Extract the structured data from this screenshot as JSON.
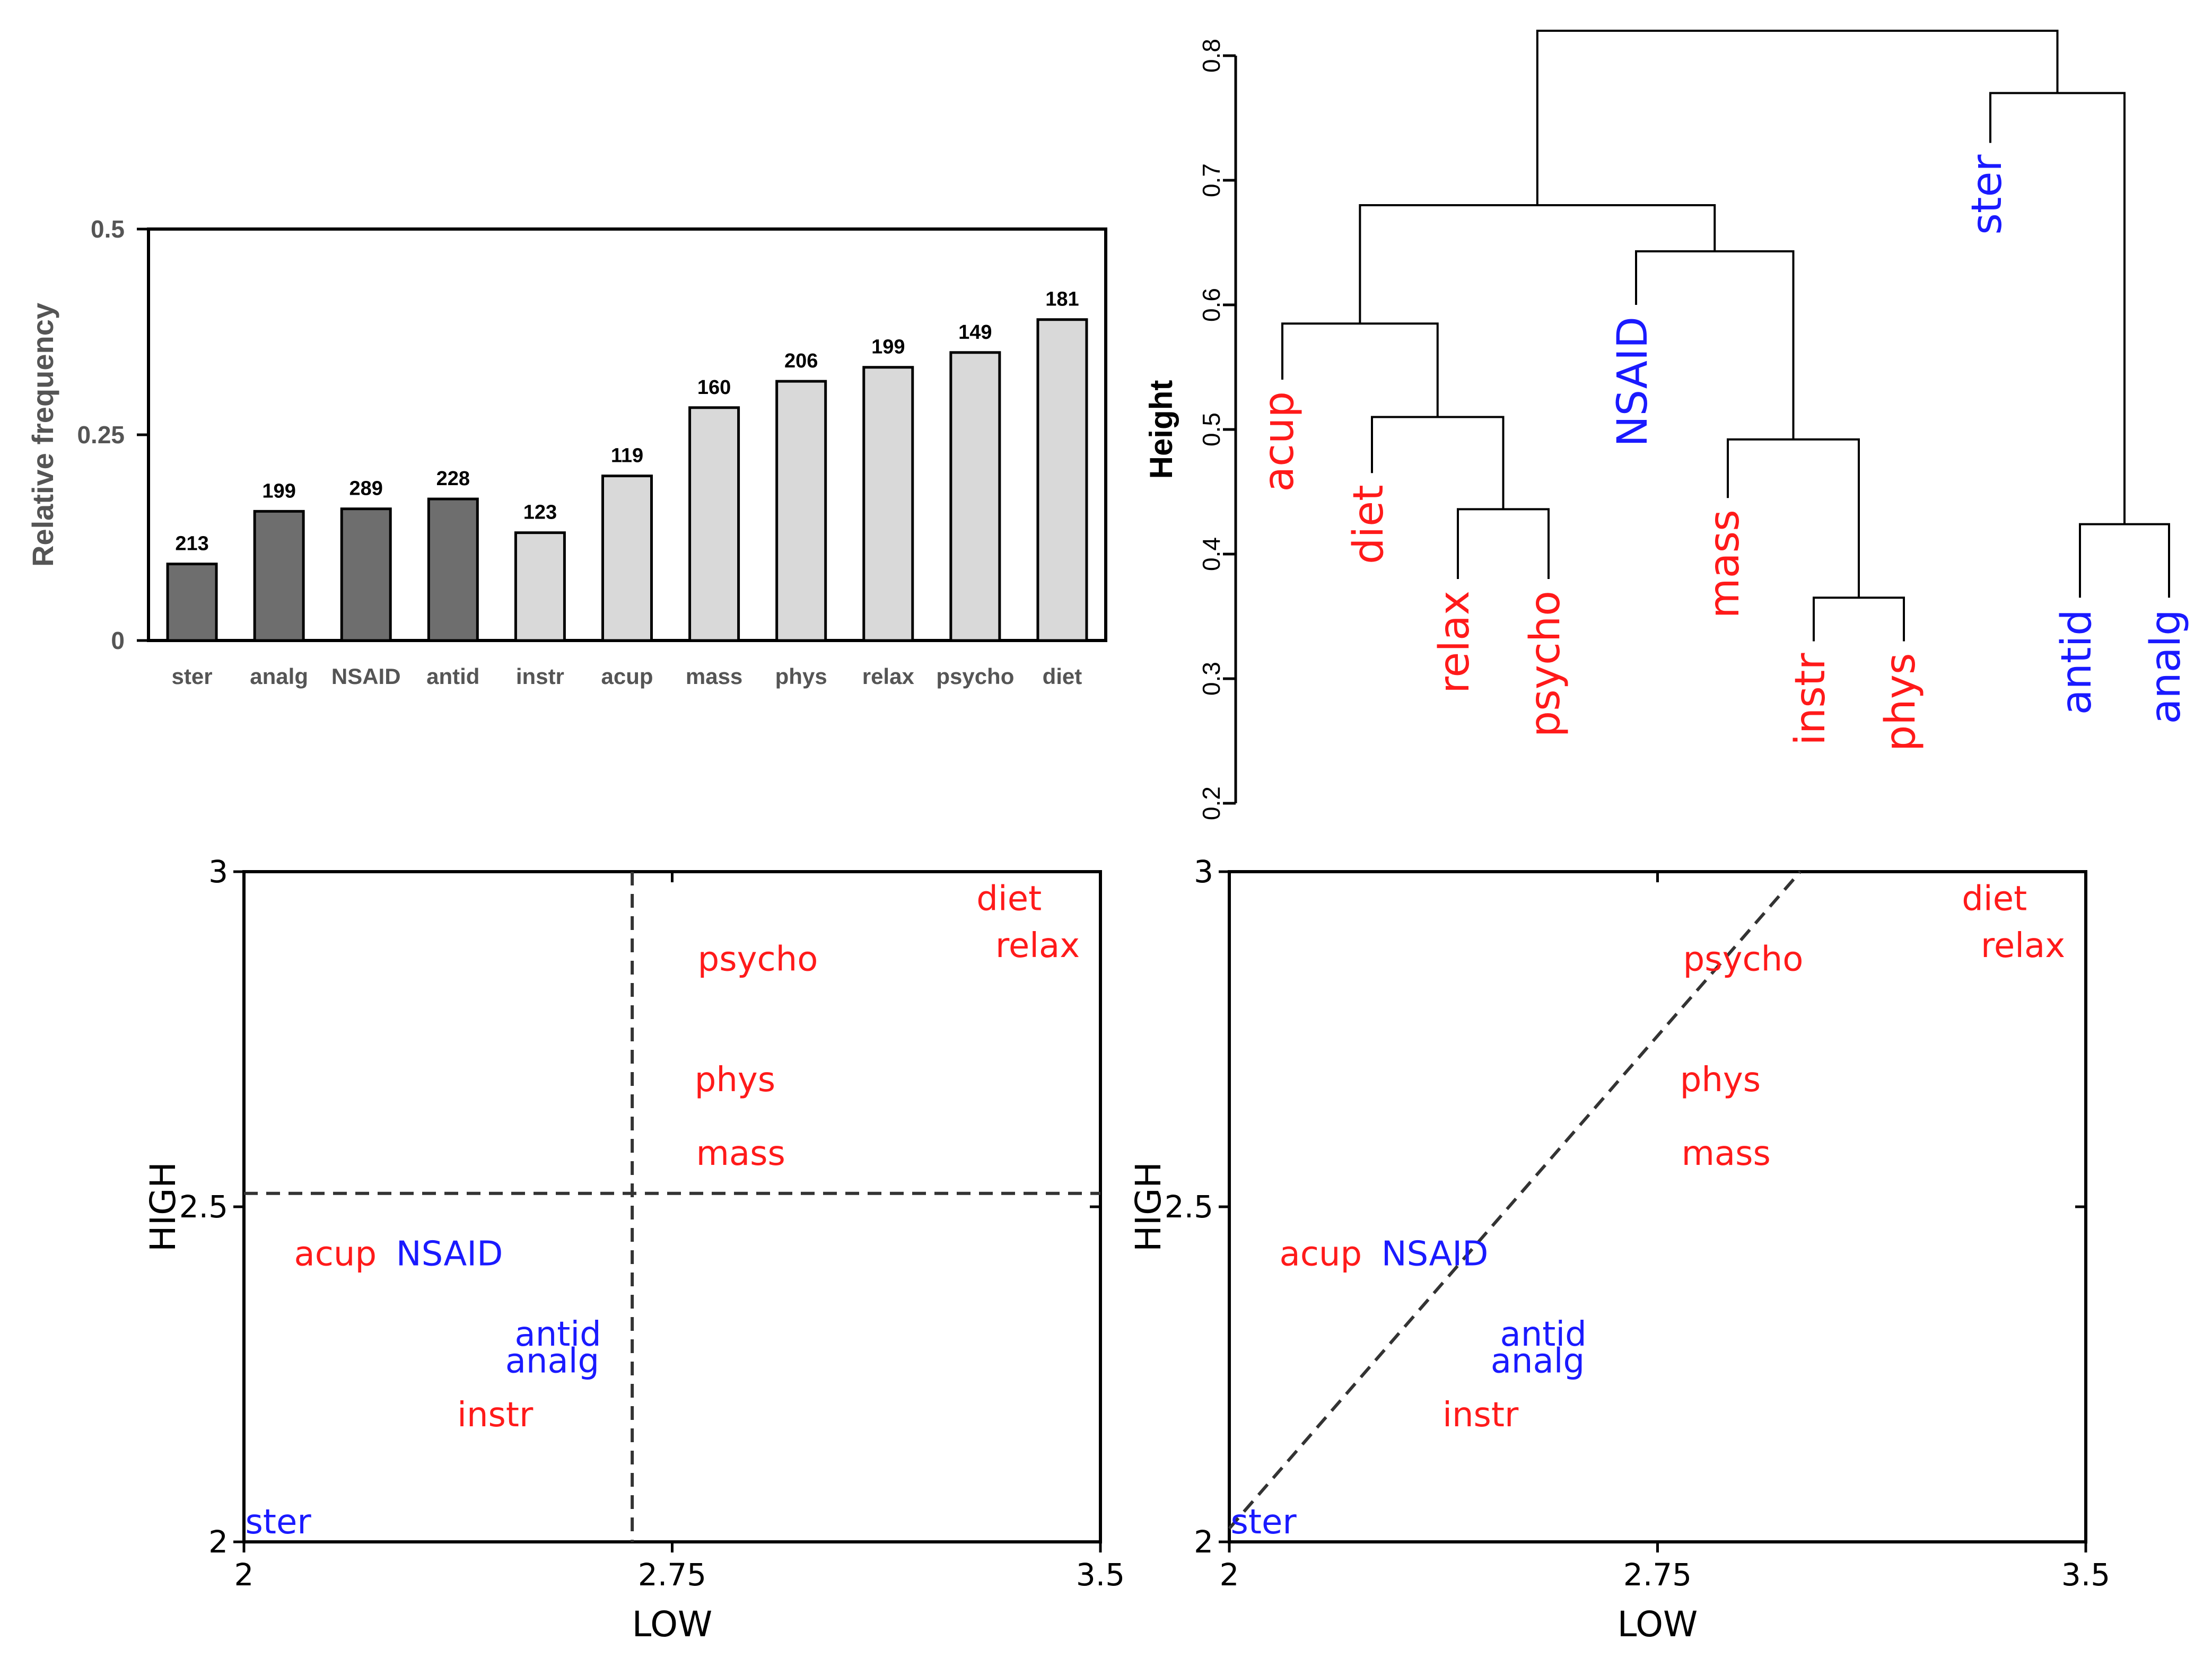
{
  "colors": {
    "dark_bar": "#6e6e6e",
    "light_bar": "#d9d9d9",
    "bar_edge": "#000000",
    "red": "#ff1a1a",
    "blue": "#1a1aff",
    "axis_text_gray": "#555555",
    "black": "#000000"
  },
  "chart_data": [
    {
      "type": "bar",
      "ylabel": "Relative frequency",
      "ylim": [
        0,
        0.5
      ],
      "yticks": [
        "0",
        "0.25",
        "0.5"
      ],
      "categories": [
        "ster",
        "analg",
        "NSAID",
        "antid",
        "instr",
        "acup",
        "mass",
        "phys",
        "relax",
        "psycho",
        "diet"
      ],
      "values": [
        0.093,
        0.157,
        0.16,
        0.172,
        0.131,
        0.2,
        0.283,
        0.315,
        0.332,
        0.35,
        0.39
      ],
      "data_labels": [
        "213",
        "199",
        "289",
        "228",
        "123",
        "119",
        "160",
        "206",
        "199",
        "149",
        "181"
      ],
      "groups": [
        "dark",
        "dark",
        "dark",
        "dark",
        "light",
        "light",
        "light",
        "light",
        "light",
        "light",
        "light"
      ]
    },
    {
      "type": "dendrogram",
      "ylabel": "Height",
      "ylim": [
        0.2,
        0.8
      ],
      "yticks": [
        "0.2",
        "0.3",
        "0.4",
        "0.5",
        "0.6",
        "0.7",
        "0.8"
      ],
      "leaves": [
        {
          "label": "acup",
          "group": "red",
          "height": 0.54
        },
        {
          "label": "diet",
          "group": "red",
          "height": 0.465
        },
        {
          "label": "relax",
          "group": "red",
          "height": 0.38
        },
        {
          "label": "psycho",
          "group": "red",
          "height": 0.38
        },
        {
          "label": "NSAID",
          "group": "blue",
          "height": 0.6
        },
        {
          "label": "mass",
          "group": "red",
          "height": 0.445
        },
        {
          "label": "instr",
          "group": "red",
          "height": 0.33
        },
        {
          "label": "phys",
          "group": "red",
          "height": 0.33
        },
        {
          "label": "ster",
          "group": "blue",
          "height": 0.73
        },
        {
          "label": "antid",
          "group": "blue",
          "height": 0.365
        },
        {
          "label": "analg",
          "group": "blue",
          "height": 0.365
        }
      ],
      "merges": [
        {
          "a": "relax",
          "b": "psycho",
          "height": 0.436
        },
        {
          "a": "diet",
          "b": "relax+psycho",
          "height": 0.51
        },
        {
          "a": "acup",
          "b": "diet+relax+psycho",
          "height": 0.585
        },
        {
          "a": "instr",
          "b": "phys",
          "height": 0.365
        },
        {
          "a": "mass",
          "b": "instr+phys",
          "height": 0.492
        },
        {
          "a": "NSAID",
          "b": "mass+instr+phys",
          "height": 0.643
        },
        {
          "a": "acup-cluster",
          "b": "NSAID-cluster",
          "height": 0.68
        },
        {
          "a": "antid",
          "b": "analg",
          "height": 0.424
        },
        {
          "a": "ster",
          "b": "antid+analg",
          "height": 0.77
        },
        {
          "a": "left-cluster",
          "b": "right-cluster",
          "height": 0.82
        }
      ]
    },
    {
      "type": "scatter",
      "xlabel": "LOW",
      "ylabel": "HIGH",
      "xlim": [
        2,
        3.5
      ],
      "ylim": [
        2,
        3
      ],
      "xticks": [
        "2",
        "2.75",
        "3.5"
      ],
      "yticks": [
        "2",
        "2.5",
        "3"
      ],
      "reference_lines": {
        "vertical_x": 2.68,
        "horizontal_y": 2.52
      },
      "points": [
        {
          "label": "diet",
          "group": "red",
          "x": 3.34,
          "y": 2.96
        },
        {
          "label": "relax",
          "group": "red",
          "x": 3.39,
          "y": 2.89
        },
        {
          "label": "psycho",
          "group": "red",
          "x": 2.9,
          "y": 2.87
        },
        {
          "label": "phys",
          "group": "red",
          "x": 2.86,
          "y": 2.69
        },
        {
          "label": "mass",
          "group": "red",
          "x": 2.87,
          "y": 2.58
        },
        {
          "label": "acup",
          "group": "red",
          "x": 2.16,
          "y": 2.43
        },
        {
          "label": "NSAID",
          "group": "blue",
          "x": 2.36,
          "y": 2.43
        },
        {
          "label": "antid",
          "group": "blue",
          "x": 2.55,
          "y": 2.31
        },
        {
          "label": "analg",
          "group": "blue",
          "x": 2.54,
          "y": 2.27
        },
        {
          "label": "instr",
          "group": "red",
          "x": 2.44,
          "y": 2.19
        },
        {
          "label": "ster",
          "group": "blue",
          "x": 2.06,
          "y": 2.03
        }
      ]
    },
    {
      "type": "scatter",
      "xlabel": "LOW",
      "ylabel": "HIGH",
      "xlim": [
        2,
        3.5
      ],
      "ylim": [
        2,
        3
      ],
      "xticks": [
        "2",
        "2.75",
        "3.5"
      ],
      "yticks": [
        "2",
        "2.5",
        "3"
      ],
      "reference_lines": {
        "diagonal": [
          [
            2,
            2.02
          ],
          [
            3.0,
            3.0
          ]
        ]
      },
      "points": [
        {
          "label": "diet",
          "group": "red",
          "x": 3.34,
          "y": 2.96
        },
        {
          "label": "relax",
          "group": "red",
          "x": 3.39,
          "y": 2.89
        },
        {
          "label": "psycho",
          "group": "red",
          "x": 2.9,
          "y": 2.87
        },
        {
          "label": "phys",
          "group": "red",
          "x": 2.86,
          "y": 2.69
        },
        {
          "label": "mass",
          "group": "red",
          "x": 2.87,
          "y": 2.58
        },
        {
          "label": "acup",
          "group": "red",
          "x": 2.16,
          "y": 2.43
        },
        {
          "label": "NSAID",
          "group": "blue",
          "x": 2.36,
          "y": 2.43
        },
        {
          "label": "antid",
          "group": "blue",
          "x": 2.55,
          "y": 2.31
        },
        {
          "label": "analg",
          "group": "blue",
          "x": 2.54,
          "y": 2.27
        },
        {
          "label": "instr",
          "group": "red",
          "x": 2.44,
          "y": 2.19
        },
        {
          "label": "ster",
          "group": "blue",
          "x": 2.06,
          "y": 2.03
        }
      ]
    }
  ]
}
